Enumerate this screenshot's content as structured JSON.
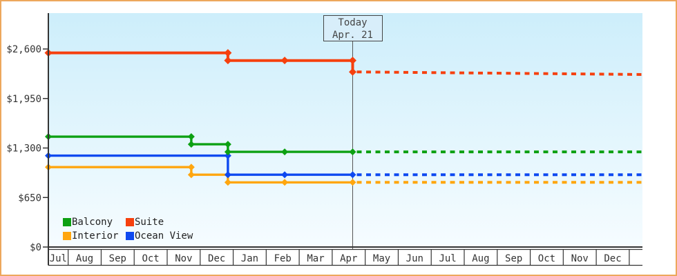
{
  "styles": {
    "frame_border": "#eda75c",
    "plot_bg_top": "#cdeefb",
    "plot_bg_bottom": "#f6fcff",
    "axis_color": "#333333",
    "label_color": "#333333",
    "today_line_color": "#555555"
  },
  "chart_data": {
    "type": "line",
    "y_axis": {
      "tick_values": [
        0,
        650,
        1300,
        1950,
        2600
      ],
      "tick_labels": [
        "$0",
        "$650",
        "$1,300",
        "$1,950",
        "$2,600"
      ],
      "ylim": [
        0,
        3070
      ],
      "grid": false
    },
    "x_axis": {
      "month_labels": [
        "Jul",
        "Aug",
        "Sep",
        "Oct",
        "Nov",
        "Dec",
        "Jan",
        "Feb",
        "Mar",
        "Apr",
        "May",
        "Jun",
        "Jul",
        "Aug",
        "Sep",
        "Oct",
        "Nov",
        "Dec"
      ],
      "x_range": [
        0,
        18
      ],
      "divider_offset": -0.4
    },
    "today": {
      "x": 9.22,
      "label_line1": "Today",
      "label_line2": "Apr. 21"
    },
    "series": [
      {
        "name": "Interior",
        "color": "#ffa60f",
        "solid": [
          {
            "x": 0,
            "y": 1049
          },
          {
            "x": 4.33,
            "y": 1049
          },
          {
            "x": 4.33,
            "y": 949
          },
          {
            "x": 5.44,
            "y": 949
          },
          {
            "x": 5.44,
            "y": 849
          },
          {
            "x": 7.16,
            "y": 849
          },
          {
            "x": 9.22,
            "y": 849
          }
        ],
        "forecast": [
          {
            "x": 9.22,
            "y": 849
          },
          {
            "x": 18,
            "y": 849
          }
        ],
        "markers": [
          {
            "x": 0,
            "y": 1049
          },
          {
            "x": 4.33,
            "y": 1049
          },
          {
            "x": 4.33,
            "y": 949
          },
          {
            "x": 5.44,
            "y": 949
          },
          {
            "x": 5.44,
            "y": 849
          },
          {
            "x": 7.16,
            "y": 849
          },
          {
            "x": 9.22,
            "y": 849
          }
        ]
      },
      {
        "name": "Ocean View",
        "color": "#0e49f0",
        "solid": [
          {
            "x": 0,
            "y": 1199
          },
          {
            "x": 5.44,
            "y": 1199
          },
          {
            "x": 5.44,
            "y": 949
          },
          {
            "x": 7.16,
            "y": 949
          },
          {
            "x": 9.22,
            "y": 949
          }
        ],
        "forecast": [
          {
            "x": 9.22,
            "y": 949
          },
          {
            "x": 18,
            "y": 949
          }
        ],
        "markers": [
          {
            "x": 0,
            "y": 1199
          },
          {
            "x": 5.44,
            "y": 1199
          },
          {
            "x": 5.44,
            "y": 949
          },
          {
            "x": 7.16,
            "y": 949
          },
          {
            "x": 9.22,
            "y": 949
          }
        ]
      },
      {
        "name": "Balcony",
        "color": "#0ca012",
        "solid": [
          {
            "x": 0,
            "y": 1449
          },
          {
            "x": 4.33,
            "y": 1449
          },
          {
            "x": 4.33,
            "y": 1349
          },
          {
            "x": 5.44,
            "y": 1349
          },
          {
            "x": 5.44,
            "y": 1249
          },
          {
            "x": 7.16,
            "y": 1249
          },
          {
            "x": 9.22,
            "y": 1249
          }
        ],
        "forecast": [
          {
            "x": 9.22,
            "y": 1249
          },
          {
            "x": 18,
            "y": 1249
          }
        ],
        "markers": [
          {
            "x": 0,
            "y": 1449
          },
          {
            "x": 4.33,
            "y": 1449
          },
          {
            "x": 4.33,
            "y": 1349
          },
          {
            "x": 5.44,
            "y": 1349
          },
          {
            "x": 5.44,
            "y": 1249
          },
          {
            "x": 7.16,
            "y": 1249
          },
          {
            "x": 9.22,
            "y": 1249
          }
        ]
      },
      {
        "name": "Suite",
        "color": "#f6400e",
        "solid": [
          {
            "x": 0,
            "y": 2549
          },
          {
            "x": 5.44,
            "y": 2549
          },
          {
            "x": 5.44,
            "y": 2449
          },
          {
            "x": 7.16,
            "y": 2449
          },
          {
            "x": 9.22,
            "y": 2449
          },
          {
            "x": 9.22,
            "y": 2299
          }
        ],
        "forecast": [
          {
            "x": 9.22,
            "y": 2299
          },
          {
            "x": 18,
            "y": 2265
          }
        ],
        "markers": [
          {
            "x": 0,
            "y": 2549
          },
          {
            "x": 5.44,
            "y": 2549
          },
          {
            "x": 5.44,
            "y": 2449
          },
          {
            "x": 7.16,
            "y": 2449
          },
          {
            "x": 9.22,
            "y": 2449
          },
          {
            "x": 9.22,
            "y": 2299
          }
        ]
      }
    ],
    "legend": {
      "rows": [
        [
          {
            "label": "Balcony",
            "color": "#0ca012"
          },
          {
            "label": "Suite",
            "color": "#f6400e"
          }
        ],
        [
          {
            "label": "Interior",
            "color": "#ffa60f"
          },
          {
            "label": "Ocean View",
            "color": "#0e49f0"
          }
        ]
      ],
      "position": "bottom-left-inside"
    }
  }
}
